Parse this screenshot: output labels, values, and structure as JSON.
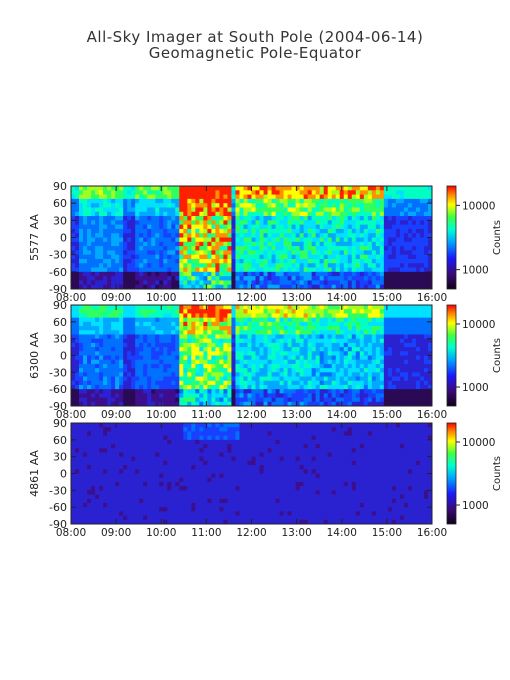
{
  "title": "All-Sky Imager at South Pole (2004-06-14)",
  "subtitle": "Geomagnetic Pole-Equator",
  "chart_data": [
    {
      "type": "heatmap",
      "ylabel": "5577 AA",
      "x_ticks": [
        "08:00",
        "09:00",
        "10:00",
        "11:00",
        "12:00",
        "13:00",
        "14:00",
        "15:00",
        "16:00"
      ],
      "xlim": [
        "08:00",
        "16:00"
      ],
      "y_ticks": [
        90,
        60,
        30,
        0,
        -30,
        -60,
        -90
      ],
      "ylim": [
        -90,
        90
      ],
      "colorbar": {
        "label": "Counts",
        "scale": "log",
        "ticks": [
          10000,
          1000
        ],
        "tick_labels": [
          "10000",
          "1000"
        ],
        "range": [
          500,
          20000
        ]
      },
      "intensity": 1.0
    },
    {
      "type": "heatmap",
      "ylabel": "6300 AA",
      "x_ticks": [
        "08:00",
        "09:00",
        "10:00",
        "11:00",
        "12:00",
        "13:00",
        "14:00",
        "15:00",
        "16:00"
      ],
      "xlim": [
        "08:00",
        "16:00"
      ],
      "y_ticks": [
        90,
        60,
        30,
        0,
        -30,
        -60,
        -90
      ],
      "ylim": [
        -90,
        90
      ],
      "colorbar": {
        "label": "Counts",
        "scale": "log",
        "ticks": [
          10000,
          1000
        ],
        "tick_labels": [
          "10000",
          "1000"
        ],
        "range": [
          500,
          20000
        ]
      },
      "intensity": 0.85
    },
    {
      "type": "heatmap",
      "ylabel": "4861 AA",
      "x_ticks": [
        "08:00",
        "09:00",
        "10:00",
        "11:00",
        "12:00",
        "13:00",
        "14:00",
        "15:00",
        "16:00"
      ],
      "xlim": [
        "08:00",
        "16:00"
      ],
      "y_ticks": [
        90,
        60,
        30,
        0,
        -30,
        -60,
        -90
      ],
      "ylim": [
        -90,
        90
      ],
      "colorbar": {
        "label": "Counts",
        "scale": "log",
        "ticks": [
          10000,
          1000
        ],
        "tick_labels": [
          "10000",
          "1000"
        ],
        "range": [
          500,
          20000
        ]
      },
      "intensity": 0.2
    }
  ]
}
